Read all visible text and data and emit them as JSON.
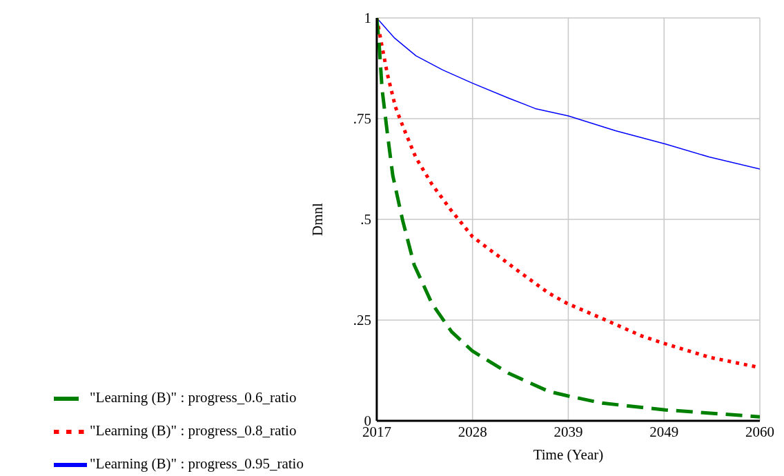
{
  "chart_data": {
    "type": "line",
    "xlabel": "Time (Year)",
    "ylabel": "Dmnl",
    "xlim": [
      2017,
      2060
    ],
    "ylim": [
      0,
      1
    ],
    "xticks": [
      2017,
      {
        "value": 2027.75,
        "label": "2028"
      },
      {
        "value": 2038.5,
        "label": "2039"
      },
      {
        "value": 2049.25,
        "label": "2049"
      },
      2060
    ],
    "yticks": [
      {
        "value": 0,
        "label": "0"
      },
      {
        "value": 0.25,
        "label": ".25"
      },
      {
        "value": 0.5,
        "label": ".5"
      },
      {
        "value": 0.75,
        "label": ".75"
      },
      {
        "value": 1,
        "label": "1"
      }
    ],
    "grid": true,
    "legend": "bottom",
    "marker": "none",
    "series": [
      {
        "name": "\"Learning (B)\" : progress_0.95_ratio",
        "color": "#0000ff",
        "line_style": "solid",
        "x": [
          2017,
          2019,
          2021.4,
          2024.4,
          2027.75,
          2031.8,
          2034.8,
          2038.5,
          2043.8,
          2049.4,
          2054.3,
          2060
        ],
        "values": [
          1,
          0.95,
          0.906,
          0.871,
          0.838,
          0.801,
          0.775,
          0.757,
          0.72,
          0.687,
          0.655,
          0.625
        ]
      },
      {
        "name": "\"Learning (B)\" : progress_0.8_ratio",
        "color": "#ff0000",
        "line_style": "dotted",
        "x": [
          2017,
          2017.5,
          2018.2,
          2019.1,
          2020,
          2021.4,
          2023.2,
          2025.3,
          2027.75,
          2030.4,
          2033.3,
          2036.3,
          2038.4,
          2042.3,
          2046.8,
          2049.4,
          2054.3,
          2060
        ],
        "values": [
          1,
          0.94,
          0.86,
          0.779,
          0.727,
          0.653,
          0.587,
          0.524,
          0.457,
          0.413,
          0.365,
          0.317,
          0.291,
          0.254,
          0.21,
          0.191,
          0.158,
          0.132
        ]
      },
      {
        "name": "\"Learning (B)\" : progress_0.6_ratio",
        "color": "#008000",
        "line_style": "dashed",
        "x": [
          2017,
          2017.25,
          2017.6,
          2018.2,
          2018.8,
          2019.9,
          2021.2,
          2023.2,
          2025.4,
          2027.75,
          2031.8,
          2036.3,
          2038.4,
          2042.3,
          2049.4,
          2060
        ],
        "values": [
          1,
          0.94,
          0.823,
          0.712,
          0.609,
          0.498,
          0.387,
          0.291,
          0.221,
          0.173,
          0.118,
          0.073,
          0.062,
          0.044,
          0.027,
          0.01
        ]
      }
    ]
  }
}
